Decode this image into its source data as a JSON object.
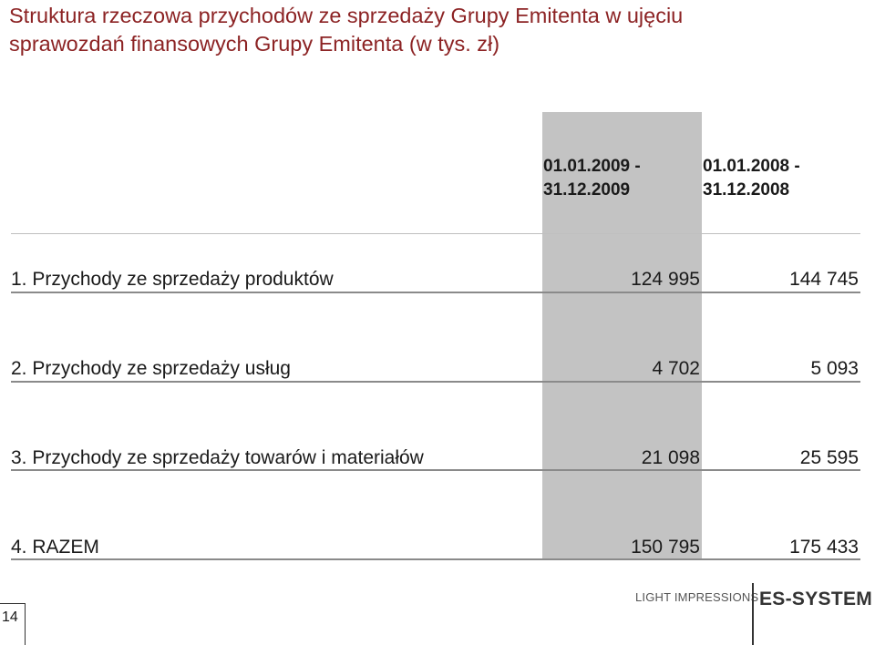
{
  "title": {
    "line1": "Struktura rzeczowa przychodów ze sprzedaży Grupy Emitenta w ujęciu",
    "line2": "sprawozdań finansowych Grupy Emitenta (w tys. zł)"
  },
  "columns": [
    {
      "line1": "01.01.2009 -",
      "line2": "31.12.2009"
    },
    {
      "line1": "01.01.2008 -",
      "line2": "31.12.2008"
    }
  ],
  "rows": [
    {
      "label": "1. Przychody ze sprzedaży produktów",
      "v2009": "124 995",
      "v2008": "144 745"
    },
    {
      "label": "2. Przychody ze sprzedaży usług",
      "v2009": "4 702",
      "v2008": "5 093"
    },
    {
      "label": "3. Przychody ze sprzedaży towarów i materiałów",
      "v2009": "21 098",
      "v2008": "25 595"
    },
    {
      "label": "4. RAZEM",
      "v2009": "150 795",
      "v2008": "175 433"
    }
  ],
  "footer": {
    "page_number": "14",
    "tagline": "LIGHT IMPRESSIONS",
    "logo": "ES-SYSTEM"
  },
  "colors": {
    "title": "#8c2324",
    "highlight_column": "#c3c3c3"
  }
}
